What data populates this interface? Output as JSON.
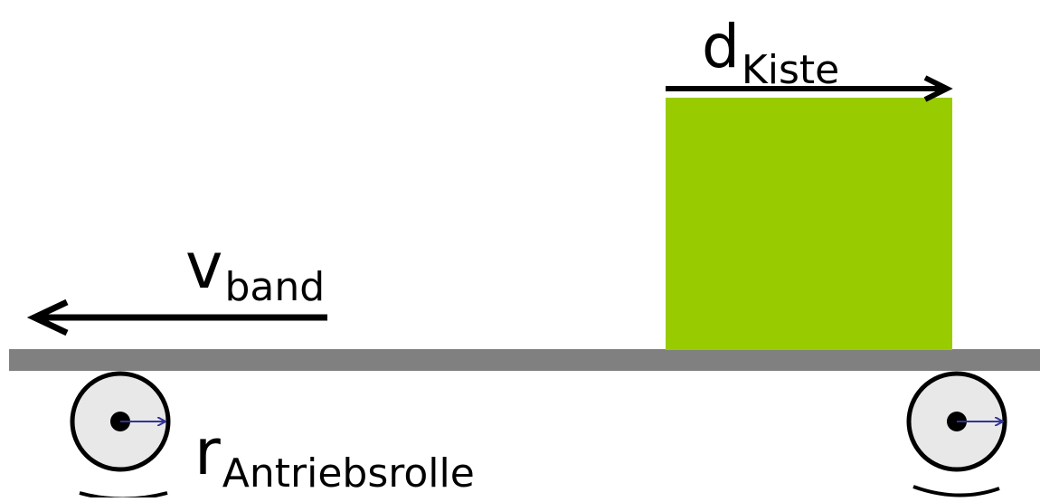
{
  "labels": {
    "box_width": {
      "main": "d",
      "sub": "Kiste"
    },
    "belt_speed": {
      "main": "v",
      "sub": "band"
    },
    "roller_radius": {
      "main": "r",
      "sub": "Antriebsrolle"
    }
  },
  "colors": {
    "belt": "#808080",
    "box": "#99cc00",
    "roller_fill": "#e8e8e8",
    "roller_stroke": "#000000",
    "radius_arrow": "#333399",
    "arrow": "#000000"
  },
  "icons": {
    "left_roller": "roller-icon",
    "right_roller": "roller-icon"
  }
}
